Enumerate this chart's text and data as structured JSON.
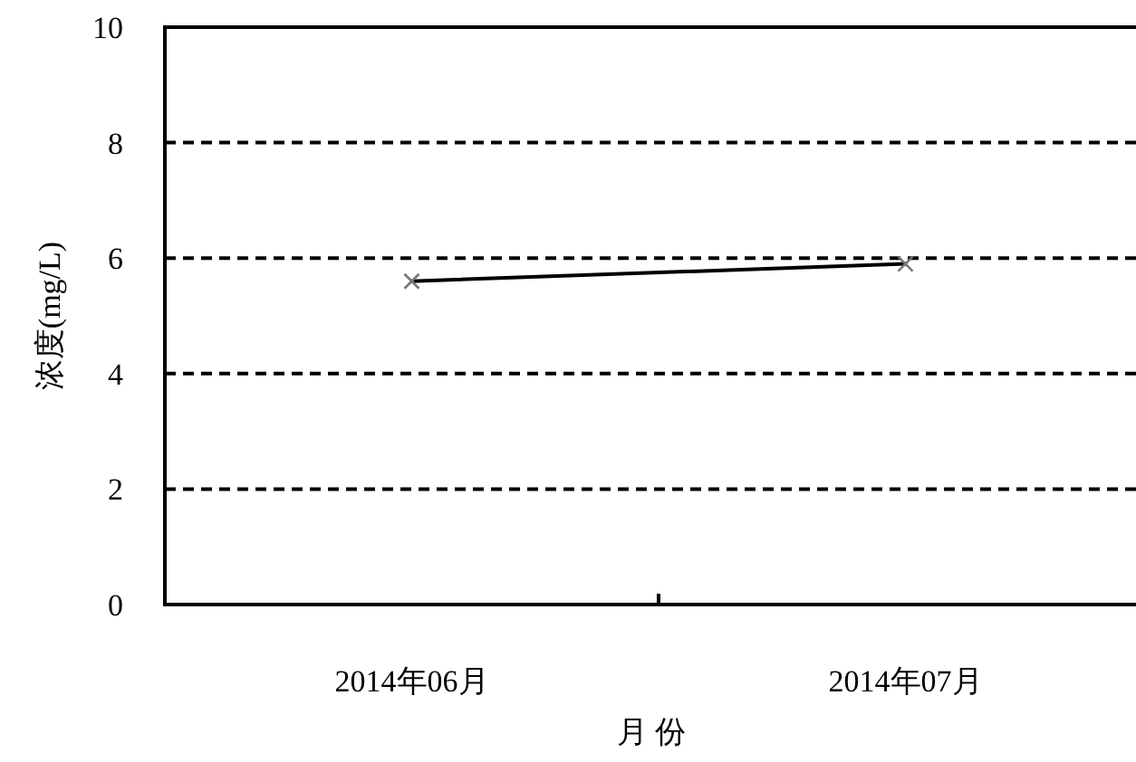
{
  "chart_data": {
    "type": "line",
    "xlabel": "月 份",
    "ylabel": "浓度(mg/L)",
    "categories": [
      "2014年06月",
      "2014年07月"
    ],
    "series": [
      {
        "color": "#000000",
        "values": [
          5.6,
          5.9
        ]
      }
    ],
    "ylim": [
      0,
      10
    ],
    "yticks": [
      0,
      2,
      4,
      6,
      8,
      10
    ],
    "grid": "y",
    "marker": "cross",
    "line_style": "solid"
  }
}
